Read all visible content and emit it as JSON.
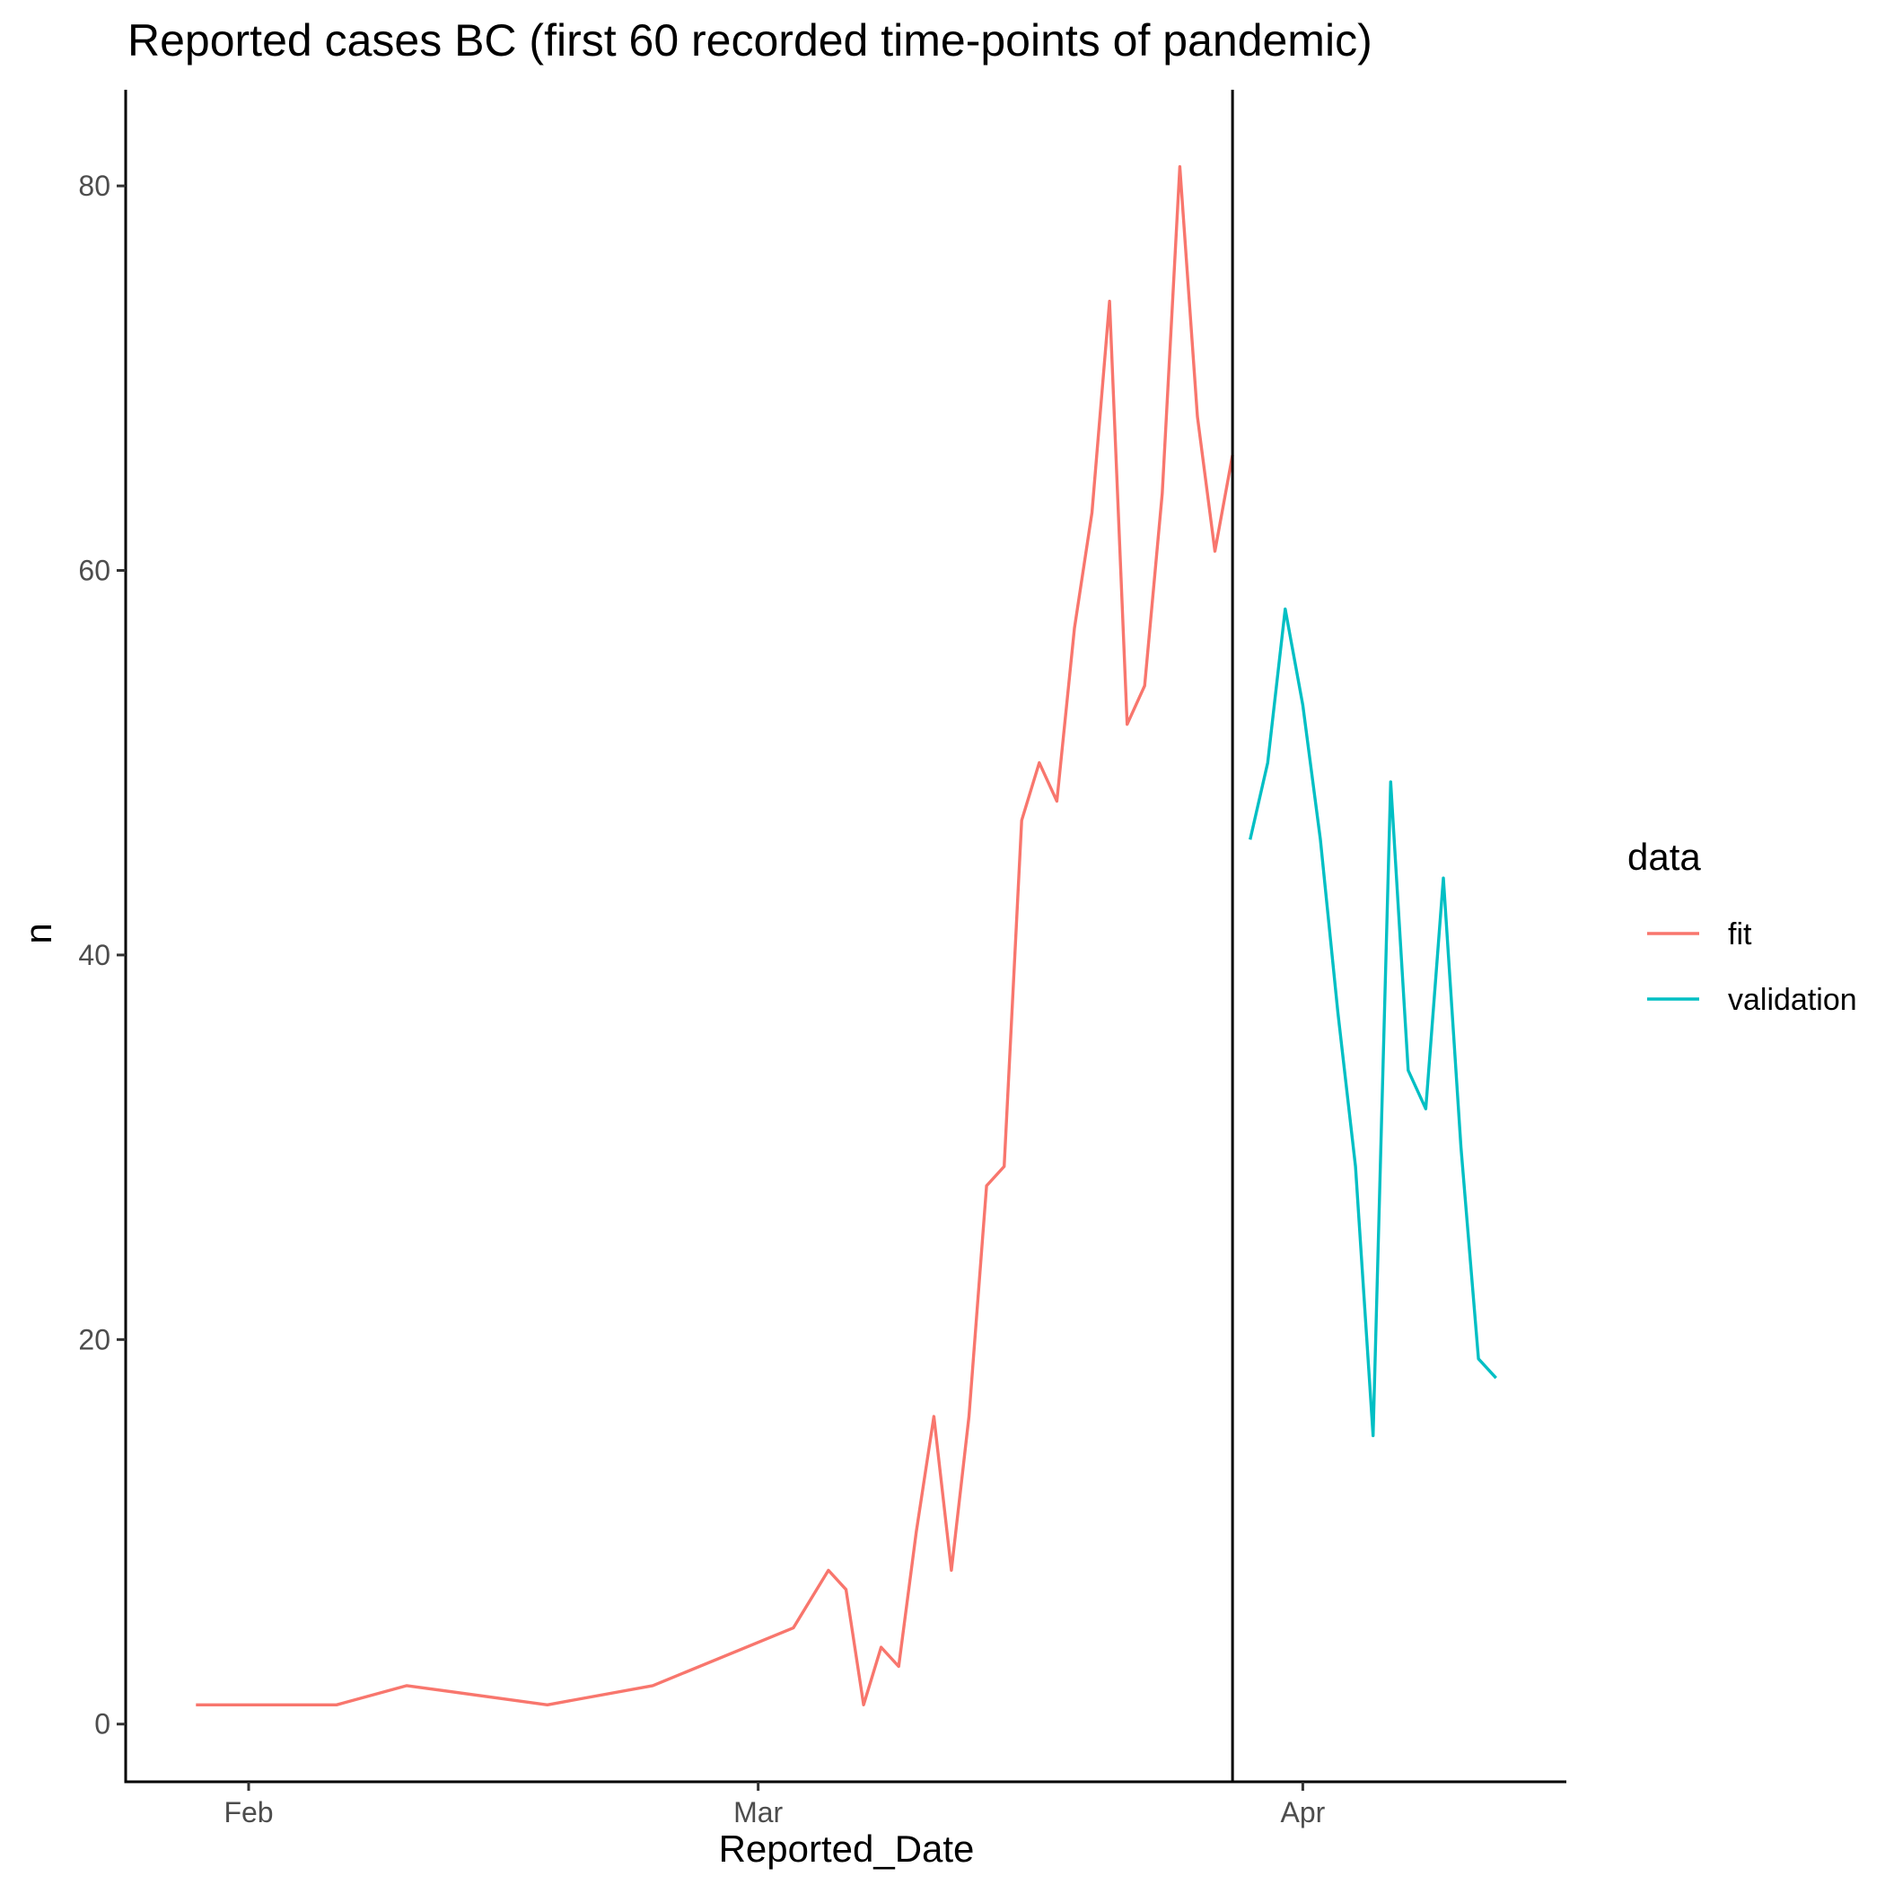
{
  "chart_data": {
    "type": "line",
    "title": "Reported cases BC (first 60 recorded time-points of pandemic)",
    "xlabel": "Reported_Date",
    "ylabel": "n",
    "x_ticks": [
      {
        "date": "2020-02-01",
        "label": "Feb"
      },
      {
        "date": "2020-03-01",
        "label": "Mar"
      },
      {
        "date": "2020-04-01",
        "label": "Apr"
      }
    ],
    "y_ticks": [
      0,
      20,
      40,
      60,
      80
    ],
    "xlim": [
      "2020-01-25",
      "2020-04-16"
    ],
    "ylim": [
      -3,
      85
    ],
    "grid": false,
    "legend_position": "right",
    "legend_title": "data",
    "vline_date": "2020-03-28",
    "series": [
      {
        "name": "fit",
        "color": "#F8766D",
        "x": [
          "2020-01-29",
          "2020-02-06",
          "2020-02-10",
          "2020-02-18",
          "2020-02-24",
          "2020-03-03",
          "2020-03-05",
          "2020-03-06",
          "2020-03-07",
          "2020-03-08",
          "2020-03-09",
          "2020-03-10",
          "2020-03-11",
          "2020-03-12",
          "2020-03-13",
          "2020-03-14",
          "2020-03-15",
          "2020-03-16",
          "2020-03-17",
          "2020-03-18",
          "2020-03-19",
          "2020-03-20",
          "2020-03-21",
          "2020-03-22",
          "2020-03-23",
          "2020-03-24",
          "2020-03-25",
          "2020-03-26",
          "2020-03-27",
          "2020-03-28"
        ],
        "y": [
          1,
          1,
          2,
          1,
          2,
          5,
          8,
          7,
          1,
          4,
          3,
          10,
          16,
          8,
          16,
          28,
          29,
          47,
          50,
          48,
          57,
          63,
          74,
          52,
          54,
          64,
          81,
          68,
          61,
          66
        ]
      },
      {
        "name": "validation",
        "color": "#00BFC4",
        "x": [
          "2020-03-29",
          "2020-03-30",
          "2020-03-31",
          "2020-04-01",
          "2020-04-02",
          "2020-04-03",
          "2020-04-04",
          "2020-04-05",
          "2020-04-06",
          "2020-04-07",
          "2020-04-08",
          "2020-04-09",
          "2020-04-10",
          "2020-04-11",
          "2020-04-12"
        ],
        "y": [
          46,
          50,
          58,
          53,
          46,
          37,
          29,
          15,
          49,
          34,
          32,
          44,
          30,
          19,
          18
        ]
      }
    ]
  }
}
